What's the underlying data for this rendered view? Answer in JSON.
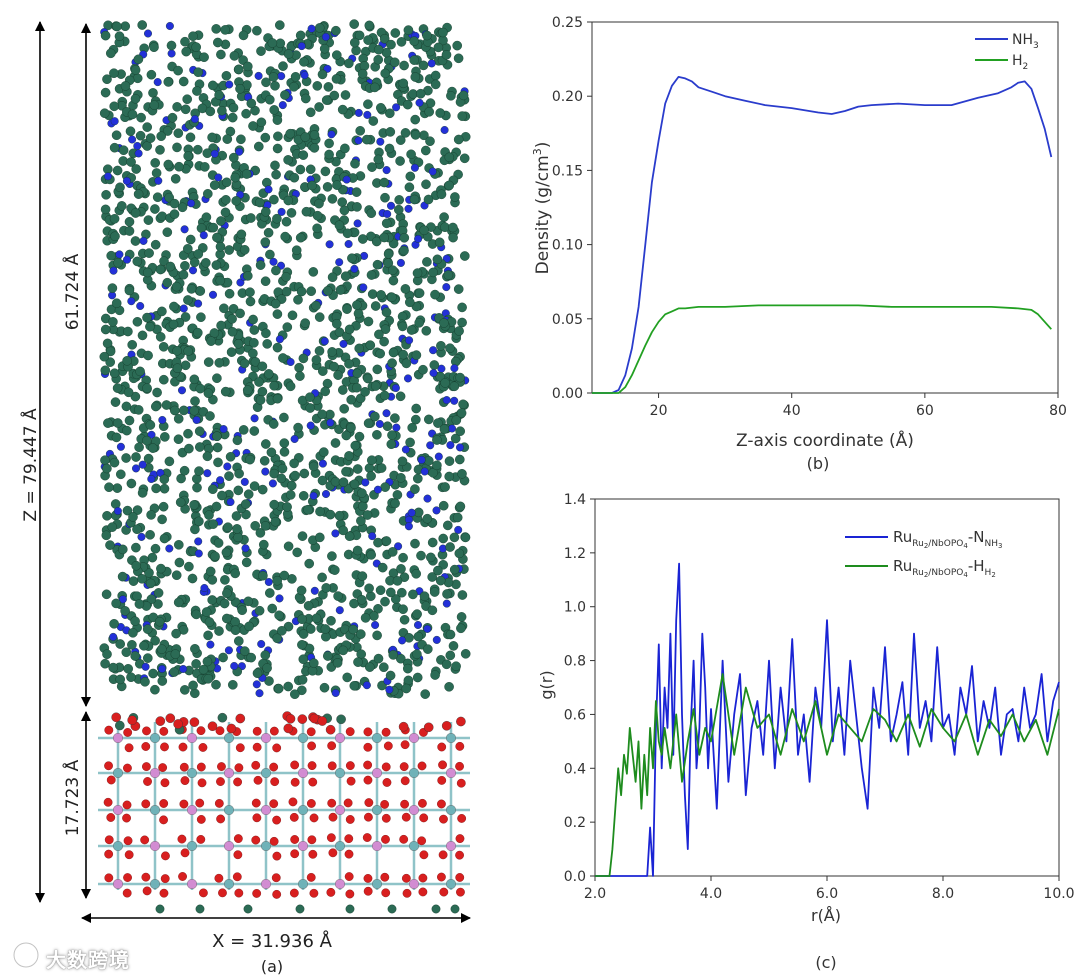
{
  "panel_a": {
    "caption": "(a)",
    "z_total_label": "Z = 79.447 Å",
    "z_gas_label": "61.724 Å",
    "z_slab_label": "17.723 Å",
    "x_label": "X = 31.936 Å",
    "atom_colors": {
      "gas_green": "#2b6b55",
      "gas_blue": "#2330d8",
      "oxygen": "#d81f1f",
      "niobium": "#d28cd2",
      "phosphorus": "#6fb2b8",
      "bond": "#8fc3c8"
    }
  },
  "watermark": {
    "text": "大数跨境"
  },
  "chart_data": [
    {
      "panel": "(b)",
      "type": "line",
      "xlabel": "Z-axis coordinate (Å)",
      "ylabel": "Density (g/cm³)",
      "xlim": [
        10,
        80
      ],
      "ylim": [
        0,
        0.25
      ],
      "xticks": [
        20,
        40,
        60,
        80
      ],
      "yticks": [
        0.0,
        0.05,
        0.1,
        0.15,
        0.2,
        0.25
      ],
      "ytick_labels": [
        "0.00",
        "0.05",
        "0.10",
        "0.15",
        "0.20",
        "0.25"
      ],
      "legend_position": "top-right",
      "series": [
        {
          "name": "NH3",
          "legend_text": "NH",
          "legend_sub": "3",
          "color": "#2a3ccc",
          "x": [
            10,
            13,
            14,
            15,
            16,
            17,
            18,
            19,
            20,
            21,
            22,
            23,
            24,
            25,
            26,
            28,
            30,
            33,
            36,
            40,
            44,
            46,
            48,
            50,
            52,
            56,
            60,
            64,
            68,
            71,
            73,
            74,
            75,
            76,
            77,
            78,
            79
          ],
          "y": [
            0.0,
            0.0,
            0.002,
            0.012,
            0.03,
            0.058,
            0.1,
            0.142,
            0.17,
            0.195,
            0.207,
            0.213,
            0.212,
            0.21,
            0.206,
            0.203,
            0.2,
            0.197,
            0.194,
            0.192,
            0.189,
            0.188,
            0.19,
            0.193,
            0.194,
            0.195,
            0.194,
            0.194,
            0.199,
            0.202,
            0.206,
            0.209,
            0.21,
            0.205,
            0.192,
            0.178,
            0.159
          ]
        },
        {
          "name": "H2",
          "legend_text": "H",
          "legend_sub": "2",
          "color": "#22a022",
          "x": [
            10,
            14,
            15,
            16,
            17,
            18,
            19,
            20,
            21,
            22,
            23,
            24,
            26,
            30,
            35,
            40,
            45,
            50,
            55,
            60,
            65,
            70,
            74,
            76,
            77,
            78,
            79
          ],
          "y": [
            0.0,
            0.0,
            0.004,
            0.012,
            0.022,
            0.032,
            0.041,
            0.048,
            0.053,
            0.055,
            0.057,
            0.057,
            0.058,
            0.058,
            0.059,
            0.059,
            0.059,
            0.059,
            0.058,
            0.058,
            0.058,
            0.058,
            0.057,
            0.056,
            0.053,
            0.048,
            0.043
          ]
        }
      ]
    },
    {
      "panel": "(c)",
      "type": "line",
      "xlabel": "r(Å)",
      "ylabel": "g(r)",
      "xlim": [
        2.0,
        10.0
      ],
      "ylim": [
        0.0,
        1.4
      ],
      "xticks": [
        2.0,
        4.0,
        6.0,
        8.0,
        10.0
      ],
      "xtick_labels": [
        "2.0",
        "4.0",
        "6.0",
        "8.0",
        "10.0"
      ],
      "yticks": [
        0.0,
        0.2,
        0.4,
        0.6,
        0.8,
        1.0,
        1.2,
        1.4
      ],
      "ytick_labels": [
        "0.0",
        "0.2",
        "0.4",
        "0.6",
        "0.8",
        "1.0",
        "1.2",
        "1.4"
      ],
      "legend_position": "top-right",
      "series": [
        {
          "name": "Ru-N",
          "legend_main": "Ru",
          "legend_sub1": "Ru",
          "legend_subsub1": "2",
          "legend_sub1b": "/NbOPO",
          "legend_subsub2": "4",
          "legend_dash": "-N",
          "legend_sub2": "NH",
          "legend_subsub3": "3",
          "color": "#1a24d4",
          "x": [
            2.0,
            2.9,
            2.95,
            3.0,
            3.05,
            3.1,
            3.15,
            3.2,
            3.25,
            3.3,
            3.35,
            3.4,
            3.45,
            3.5,
            3.55,
            3.6,
            3.65,
            3.7,
            3.75,
            3.8,
            3.85,
            3.9,
            3.95,
            4.0,
            4.1,
            4.2,
            4.3,
            4.4,
            4.5,
            4.6,
            4.7,
            4.8,
            4.9,
            5.0,
            5.1,
            5.2,
            5.3,
            5.4,
            5.5,
            5.6,
            5.7,
            5.8,
            5.9,
            6.0,
            6.1,
            6.2,
            6.3,
            6.4,
            6.5,
            6.6,
            6.7,
            6.8,
            6.9,
            7.0,
            7.1,
            7.2,
            7.3,
            7.4,
            7.5,
            7.6,
            7.7,
            7.8,
            7.9,
            8.0,
            8.1,
            8.2,
            8.3,
            8.4,
            8.5,
            8.6,
            8.7,
            8.8,
            8.9,
            9.0,
            9.1,
            9.2,
            9.3,
            9.4,
            9.5,
            9.6,
            9.7,
            9.8,
            9.9,
            10.0
          ],
          "y": [
            0.0,
            0.0,
            0.18,
            0.0,
            0.55,
            0.86,
            0.4,
            0.7,
            0.55,
            0.9,
            0.45,
            0.95,
            1.16,
            0.6,
            0.3,
            0.1,
            0.55,
            0.8,
            0.4,
            0.55,
            0.9,
            0.7,
            0.4,
            0.62,
            0.25,
            0.8,
            0.35,
            0.6,
            0.75,
            0.3,
            0.55,
            0.65,
            0.45,
            0.8,
            0.4,
            0.7,
            0.5,
            0.88,
            0.45,
            0.6,
            0.35,
            0.7,
            0.55,
            0.95,
            0.5,
            0.7,
            0.45,
            0.8,
            0.6,
            0.4,
            0.25,
            0.7,
            0.55,
            0.85,
            0.5,
            0.6,
            0.72,
            0.45,
            0.9,
            0.55,
            0.65,
            0.5,
            0.85,
            0.55,
            0.6,
            0.45,
            0.7,
            0.6,
            0.78,
            0.5,
            0.65,
            0.55,
            0.7,
            0.45,
            0.6,
            0.62,
            0.5,
            0.7,
            0.55,
            0.6,
            0.75,
            0.5,
            0.65,
            0.72
          ]
        },
        {
          "name": "Ru-H",
          "legend_main": "Ru",
          "legend_sub1": "Ru",
          "legend_subsub1": "2",
          "legend_sub1b": "/NbOPO",
          "legend_subsub2": "4",
          "legend_dash": "-H",
          "legend_sub2": "H",
          "legend_subsub3": "2",
          "color": "#1e8c1e",
          "x": [
            2.0,
            2.25,
            2.3,
            2.35,
            2.4,
            2.45,
            2.5,
            2.55,
            2.6,
            2.65,
            2.7,
            2.75,
            2.8,
            2.85,
            2.9,
            2.95,
            3.0,
            3.05,
            3.1,
            3.15,
            3.2,
            3.3,
            3.4,
            3.5,
            3.6,
            3.7,
            3.8,
            3.9,
            4.0,
            4.2,
            4.4,
            4.6,
            4.8,
            5.0,
            5.2,
            5.4,
            5.6,
            5.8,
            6.0,
            6.2,
            6.4,
            6.6,
            6.8,
            7.0,
            7.2,
            7.4,
            7.6,
            7.8,
            8.0,
            8.2,
            8.4,
            8.6,
            8.8,
            9.0,
            9.2,
            9.4,
            9.6,
            9.8,
            10.0
          ],
          "y": [
            0.0,
            0.0,
            0.1,
            0.25,
            0.4,
            0.3,
            0.45,
            0.38,
            0.55,
            0.45,
            0.35,
            0.5,
            0.25,
            0.45,
            0.3,
            0.55,
            0.4,
            0.65,
            0.5,
            0.45,
            0.55,
            0.4,
            0.6,
            0.35,
            0.5,
            0.62,
            0.45,
            0.55,
            0.5,
            0.75,
            0.45,
            0.7,
            0.55,
            0.6,
            0.45,
            0.62,
            0.5,
            0.65,
            0.45,
            0.6,
            0.55,
            0.5,
            0.62,
            0.58,
            0.5,
            0.6,
            0.48,
            0.62,
            0.55,
            0.5,
            0.6,
            0.45,
            0.58,
            0.52,
            0.6,
            0.5,
            0.58,
            0.45,
            0.62
          ]
        }
      ]
    }
  ]
}
